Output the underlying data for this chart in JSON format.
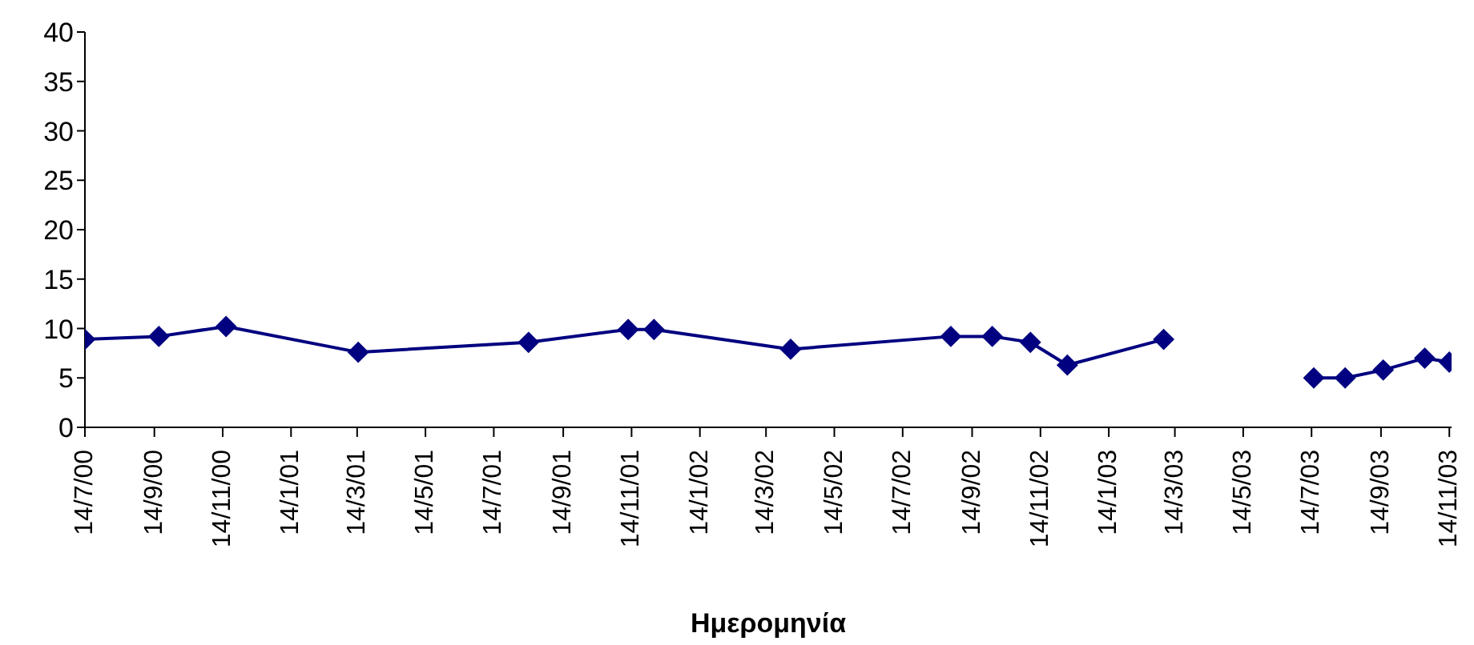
{
  "chart_data": {
    "type": "line",
    "xlabel": "Ημερομηνία",
    "x": [
      "2000-07-14",
      "2000-09-18",
      "2000-11-17",
      "2001-03-15",
      "2001-08-14",
      "2001-11-11",
      "2001-12-04",
      "2002-04-05",
      "2002-08-26",
      "2002-10-02",
      "2002-11-05",
      "2002-12-08",
      "2003-03-04",
      "2003-05-14",
      "2003-07-16",
      "2003-08-13",
      "2003-09-16",
      "2003-10-23",
      "2003-11-14"
    ],
    "series": [
      {
        "color": "#000080",
        "values": [
          8.9,
          9.2,
          10.2,
          7.6,
          8.6,
          9.9,
          9.9,
          7.9,
          9.2,
          9.2,
          8.6,
          6.3,
          8.9,
          null,
          5.0,
          5.0,
          5.8,
          7.0,
          6.6
        ]
      }
    ],
    "xlim": [
      "2000-07-14",
      "2003-11-16"
    ],
    "xticks": [
      {
        "value": "2000-07-14",
        "label": "14/7/00"
      },
      {
        "value": "2000-09-14",
        "label": "14/9/00"
      },
      {
        "value": "2000-11-14",
        "label": "14/11/00"
      },
      {
        "value": "2001-01-14",
        "label": "14/1/01"
      },
      {
        "value": "2001-03-14",
        "label": "14/3/01"
      },
      {
        "value": "2001-05-14",
        "label": "14/5/01"
      },
      {
        "value": "2001-07-14",
        "label": "14/7/01"
      },
      {
        "value": "2001-09-14",
        "label": "14/9/01"
      },
      {
        "value": "2001-11-14",
        "label": "14/11/01"
      },
      {
        "value": "2002-01-14",
        "label": "14/1/02"
      },
      {
        "value": "2002-03-14",
        "label": "14/3/02"
      },
      {
        "value": "2002-05-14",
        "label": "14/5/02"
      },
      {
        "value": "2002-07-14",
        "label": "14/7/02"
      },
      {
        "value": "2002-09-14",
        "label": "14/9/02"
      },
      {
        "value": "2002-11-14",
        "label": "14/11/02"
      },
      {
        "value": "2003-01-14",
        "label": "14/1/03"
      },
      {
        "value": "2003-03-14",
        "label": "14/3/03"
      },
      {
        "value": "2003-05-14",
        "label": "14/5/03"
      },
      {
        "value": "2003-07-14",
        "label": "14/7/03"
      },
      {
        "value": "2003-09-14",
        "label": "14/9/03"
      },
      {
        "value": "2003-11-14",
        "label": "14/11/03"
      }
    ],
    "ylim": [
      0,
      40
    ],
    "yticks": [
      0,
      5,
      10,
      15,
      20,
      25,
      30,
      35,
      40
    ],
    "grid": false,
    "legend": false,
    "marker": "diamond",
    "line_style": "solid"
  }
}
